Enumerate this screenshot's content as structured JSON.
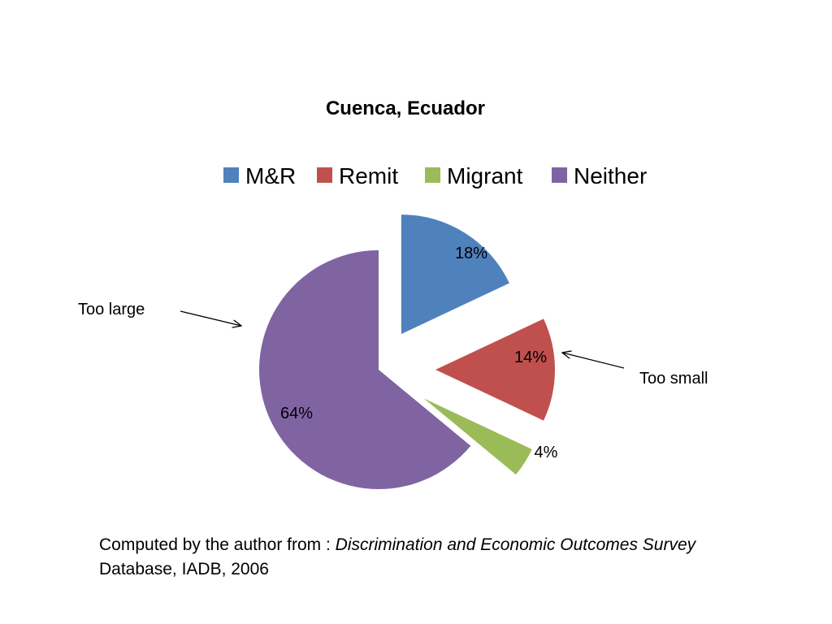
{
  "chart_data": {
    "type": "pie",
    "title": "Cuenca, Ecuador",
    "categories": [
      "M&R",
      "Remit",
      "Migrant",
      "Neither"
    ],
    "values": [
      18,
      14,
      4,
      64
    ],
    "value_labels": [
      "18%",
      "14%",
      "4%",
      "64%"
    ],
    "colors": [
      "#4F81BD",
      "#C0504D",
      "#9BBB59",
      "#8064A2"
    ],
    "exploded_slices": [
      "M&R",
      "Remit",
      "Migrant"
    ],
    "legend_position": "top",
    "annotations": {
      "too_large": "Too large",
      "too_small": "Too small"
    }
  },
  "source": {
    "prefix": "Computed by the author from : ",
    "italic_title": "Discrimination and Economic Outcomes Survey",
    "suffix": "Database, IADB, 2006"
  }
}
